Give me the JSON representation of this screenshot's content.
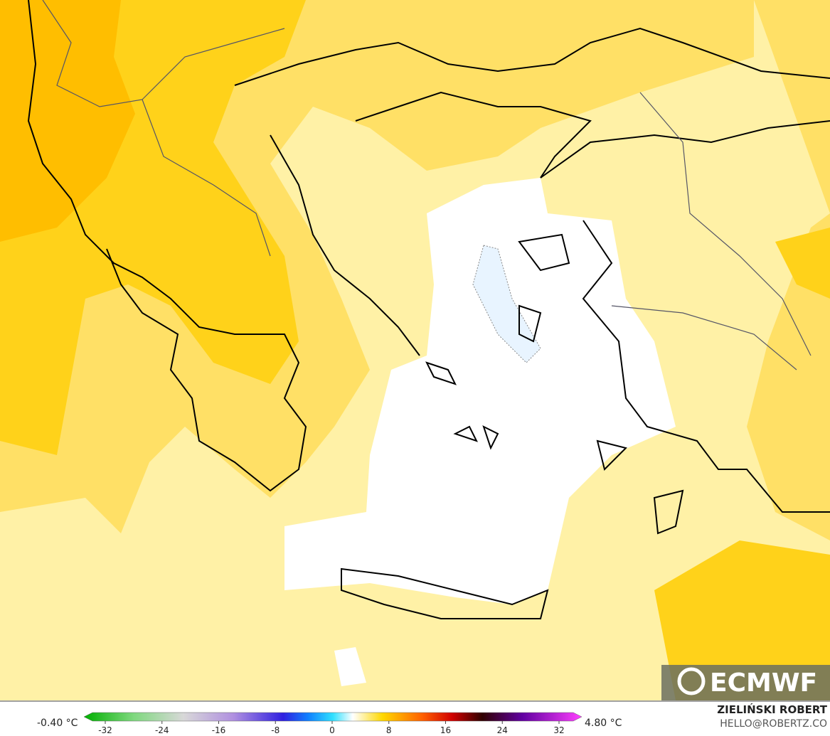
{
  "legend": {
    "min_label": "-0.40 °C",
    "max_label": "4.80 °C",
    "ticks": [
      -32,
      -24,
      -16,
      -8,
      0,
      8,
      16,
      24,
      32
    ]
  },
  "credits": {
    "logo": "ECMWF",
    "author": "ZIELIŃSKI ROBERT",
    "email": "HELLO@ROBERTZ.CO"
  }
}
